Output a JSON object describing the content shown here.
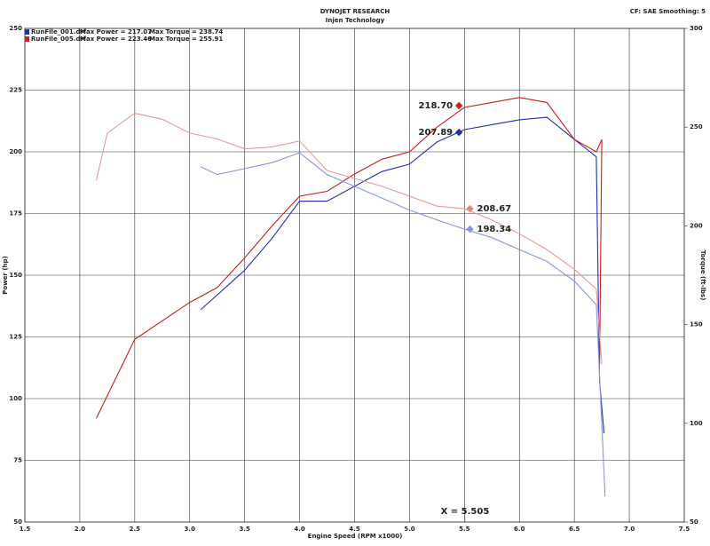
{
  "chart_data": {
    "type": "line",
    "title": "DYNOJET RESEARCH",
    "subtitle": "Injen Technology",
    "settings_text": "CF: SAE  Smoothing: 5",
    "x_label": "Engine Speed (RPM x1000)",
    "y_label": "Power (hp)",
    "y2_label": "Torque (ft-lbs)",
    "xlim": [
      1.5,
      7.5
    ],
    "xticks": [
      1.5,
      {
        "value": 2,
        "label": "2.0"
      },
      2.5,
      {
        "value": 3,
        "label": "3.0"
      },
      3.5,
      {
        "value": 4,
        "label": "4.0"
      },
      4.5,
      {
        "value": 5,
        "label": "5.0"
      },
      5.5,
      {
        "value": 6,
        "label": "6.0"
      },
      6.5,
      {
        "value": 7,
        "label": "7.0"
      },
      7.5
    ],
    "ylim": [
      50,
      250
    ],
    "yticks": [
      50,
      75,
      100,
      125,
      150,
      175,
      200,
      225,
      250
    ],
    "y2lim": [
      50,
      300
    ],
    "y2ticks": [
      50,
      100,
      150,
      200,
      250,
      300
    ],
    "grid": true,
    "legend": [
      {
        "file": "RunFile_001.drf",
        "max_power": "Max Power = 217.07",
        "max_torque": "Max Torque = 238.74",
        "color": "#2233aa"
      },
      {
        "file": "RunFile_005.drf",
        "max_power": "Max Power = 223.46",
        "max_torque": "Max Torque = 255.91",
        "color": "#cc2222"
      }
    ],
    "series": [
      {
        "name": "RunFile_001.drf",
        "color": "#1f2fb0",
        "x": [
          3.1,
          3.5,
          3.75,
          4.0,
          4.25,
          4.5,
          4.75,
          5.0,
          5.25,
          5.5,
          5.75,
          6.0,
          6.25,
          6.5,
          6.7,
          6.73,
          6.77
        ],
        "values": [
          136,
          152,
          165,
          180,
          180,
          186,
          192,
          195,
          204,
          209,
          211,
          213,
          214,
          205,
          198,
          107,
          86
        ]
      },
      {
        "name": "RunFile_005.drf",
        "color": "#c81e1e",
        "x": [
          2.15,
          2.5,
          3.0,
          3.25,
          3.5,
          3.75,
          4.0,
          4.25,
          4.5,
          4.75,
          5.0,
          5.25,
          5.5,
          5.75,
          6.0,
          6.25,
          6.5,
          6.7,
          6.75,
          6.73
        ],
        "values": [
          92,
          124,
          139,
          145,
          157,
          170,
          182,
          184,
          191,
          197,
          200,
          210,
          218,
          220,
          222,
          220,
          205,
          200,
          205,
          114
        ]
      },
      {
        "name": "RunFile_001.drf",
        "color": "#8c96d8",
        "axis": "y2",
        "x": [
          3.1,
          3.25,
          3.5,
          3.75,
          4.0,
          4.25,
          4.5,
          4.75,
          5.0,
          5.25,
          5.5,
          5.75,
          6.0,
          6.25,
          6.5,
          6.7,
          6.78
        ],
        "values": [
          230,
          226,
          229,
          232,
          237,
          226,
          220,
          214,
          208,
          203,
          198.34,
          194,
          188,
          182,
          172,
          160,
          63
        ]
      },
      {
        "name": "RunFile_005.drf",
        "color": "#e49a9a",
        "axis": "y2",
        "x": [
          2.15,
          2.25,
          2.5,
          2.75,
          3.0,
          3.25,
          3.5,
          3.75,
          4.0,
          4.25,
          4.5,
          4.75,
          5.0,
          5.25,
          5.5,
          5.75,
          6.0,
          6.25,
          6.5,
          6.7,
          6.75
        ],
        "values": [
          223,
          247,
          257,
          254,
          247,
          244,
          239,
          240,
          243,
          228,
          224,
          220,
          215,
          210,
          208.67,
          203,
          196,
          188,
          178,
          168,
          130
        ]
      }
    ],
    "annotations": [
      {
        "x": 5.45,
        "value": 218.7,
        "label": "218.70",
        "color": "#cc2222"
      },
      {
        "x": 5.45,
        "value": 207.89,
        "label": "207.89",
        "color": "#1f2fb0"
      },
      {
        "x": 5.55,
        "value": 208.67,
        "label": "208.67",
        "color": "#e08a7a",
        "axis": "y2"
      },
      {
        "x": 5.55,
        "value": 198.34,
        "label": "198.34",
        "color": "#8c96d8",
        "axis": "y2"
      }
    ],
    "cursor": {
      "value": 5.505,
      "label": "X = 5.505"
    }
  }
}
